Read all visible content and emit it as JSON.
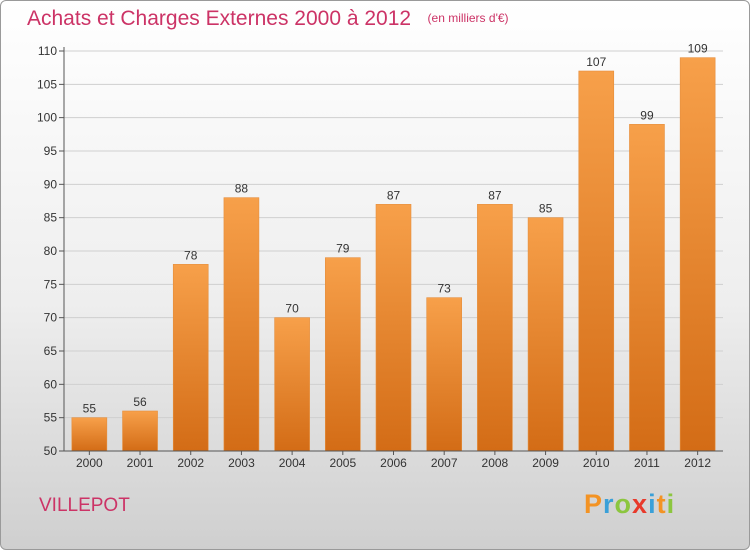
{
  "chart_data": {
    "type": "bar",
    "title": "Achats et Charges Externes 2000 à 2012",
    "subtitle": "(en milliers d'€)",
    "categories": [
      "2000",
      "2001",
      "2002",
      "2003",
      "2004",
      "2005",
      "2006",
      "2007",
      "2008",
      "2009",
      "2010",
      "2011",
      "2012"
    ],
    "values": [
      55,
      56,
      78,
      88,
      70,
      79,
      87,
      73,
      87,
      85,
      107,
      99,
      109
    ],
    "ylim": [
      50,
      110
    ],
    "yticks": [
      50,
      55,
      60,
      65,
      70,
      75,
      80,
      85,
      90,
      95,
      100,
      105,
      110
    ],
    "grid": true,
    "bar_color_top": "#f7a04a",
    "bar_color_bottom": "#d36c16"
  },
  "commune": "VILLEPOT",
  "logo": {
    "text": "Proxiti",
    "letters": [
      {
        "ch": "P",
        "color": "#f39324"
      },
      {
        "ch": "r",
        "color": "#3aa0d8"
      },
      {
        "ch": "o",
        "color": "#8cc63f"
      },
      {
        "ch": "x",
        "color": "#e8392b"
      },
      {
        "ch": "i",
        "color": "#3aa0d8"
      },
      {
        "ch": "t",
        "color": "#f39324"
      },
      {
        "ch": "i",
        "color": "#8cc63f"
      }
    ]
  },
  "colors": {
    "title": "#cc3366",
    "axis": "#555555",
    "grid": "#cfcfcf",
    "label": "#333333"
  }
}
